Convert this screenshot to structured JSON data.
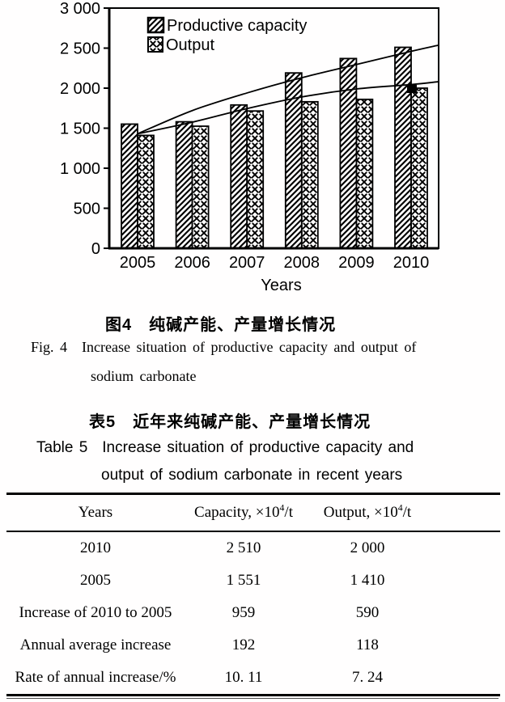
{
  "figure": {
    "caption_zh": "图4　纯碱产能、产量增长情况",
    "caption_en_label": "Fig. 4",
    "caption_en_line1": "Increase situation of productive capacity and output of",
    "caption_en_line2": "sodium carbonate"
  },
  "chart_data": {
    "type": "bar",
    "categories": [
      "2005",
      "2006",
      "2007",
      "2008",
      "2009",
      "2010"
    ],
    "series": [
      {
        "name": "Productive capacity",
        "pattern": "diagonal-hatch",
        "values": [
          1551,
          1580,
          1790,
          2190,
          2370,
          2510
        ]
      },
      {
        "name": "Output",
        "pattern": "diamond-crosshatch",
        "values": [
          1410,
          1525,
          1715,
          1830,
          1860,
          2000
        ]
      }
    ],
    "trend_lines": [
      {
        "series": "Productive capacity",
        "points": [
          [
            2005,
            1430
          ],
          [
            2006,
            1720
          ],
          [
            2007,
            1940
          ],
          [
            2008,
            2130
          ],
          [
            2009,
            2295
          ],
          [
            2010,
            2460
          ],
          [
            2010.49,
            2535
          ]
        ]
      },
      {
        "series": "Output",
        "points": [
          [
            2005,
            1430
          ],
          [
            2006,
            1575
          ],
          [
            2007,
            1745
          ],
          [
            2008,
            1890
          ],
          [
            2009,
            1990
          ],
          [
            2010,
            2045
          ],
          [
            2010.49,
            2080
          ]
        ]
      }
    ],
    "end_marker": {
      "series": "Output",
      "year": 2010,
      "value": 2000,
      "shape": "filled-square"
    },
    "xlabel": "Years",
    "ylim": [
      0,
      3000
    ],
    "ytick_step": 500,
    "ytick_labels": [
      "0",
      "500",
      "1 000",
      "1 500",
      "2 000",
      "2 500",
      "3 000"
    ],
    "grid": false,
    "legend_position": "top-left-inside",
    "ink_color": "#000000"
  },
  "table": {
    "caption_zh": "表5　近年来纯碱产能、产量增长情况",
    "caption_en_label": "Table 5",
    "caption_en_line1": "Increase situation of productive capacity and",
    "caption_en_line2": "output of sodium carbonate in recent years",
    "columns": [
      {
        "text": "Years"
      },
      {
        "pre": "Capacity, ×10",
        "sup": "4",
        "post": "/t"
      },
      {
        "pre": "Output, ×10",
        "sup": "4",
        "post": "/t"
      }
    ],
    "rows": [
      {
        "label": "2010",
        "capacity": "2 510",
        "output": "2 000"
      },
      {
        "label": "2005",
        "capacity": "1 551",
        "output": "1 410"
      },
      {
        "label": "Increase of 2010 to 2005",
        "capacity": "959",
        "output": "590"
      },
      {
        "label": "Annual average increase",
        "capacity": "192",
        "output": "118"
      },
      {
        "label": "Rate of annual increase/%",
        "capacity": "10. 11",
        "output": "7. 24"
      }
    ]
  }
}
